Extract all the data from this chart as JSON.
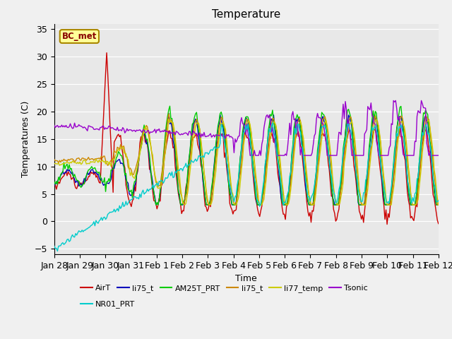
{
  "title": "Temperature",
  "xlabel": "Time",
  "ylabel": "Temperatures (C)",
  "ylim": [
    -6,
    36
  ],
  "annotation": "BC_met",
  "series_colors": {
    "AirT": "#cc0000",
    "li75_t_blue": "#0000bb",
    "AM25T_PRT": "#00cc00",
    "li75_t_orange": "#cc8800",
    "li77_temp": "#cccc00",
    "Tsonic": "#9900cc",
    "NR01_PRT": "#00cccc"
  },
  "legend_labels": [
    "AirT",
    "li75_t",
    "AM25T_PRT",
    "li75_t",
    "li77_temp",
    "Tsonic",
    "NR01_PRT"
  ],
  "legend_colors": [
    "#cc0000",
    "#0000bb",
    "#00cc00",
    "#cc8800",
    "#cccc00",
    "#9900cc",
    "#00cccc"
  ],
  "xtick_labels": [
    "Jan 28",
    "Jan 29",
    "Jan 30",
    "Jan 31",
    "Feb 1",
    "Feb 2",
    "Feb 3",
    "Feb 4",
    "Feb 5",
    "Feb 6",
    "Feb 7",
    "Feb 8",
    "Feb 9",
    "Feb 10",
    "Feb 11",
    "Feb 12"
  ],
  "background_color": "#e8e8e8",
  "grid_color": "#ffffff",
  "title_fontsize": 11,
  "figsize": [
    6.4,
    4.8
  ],
  "dpi": 100
}
